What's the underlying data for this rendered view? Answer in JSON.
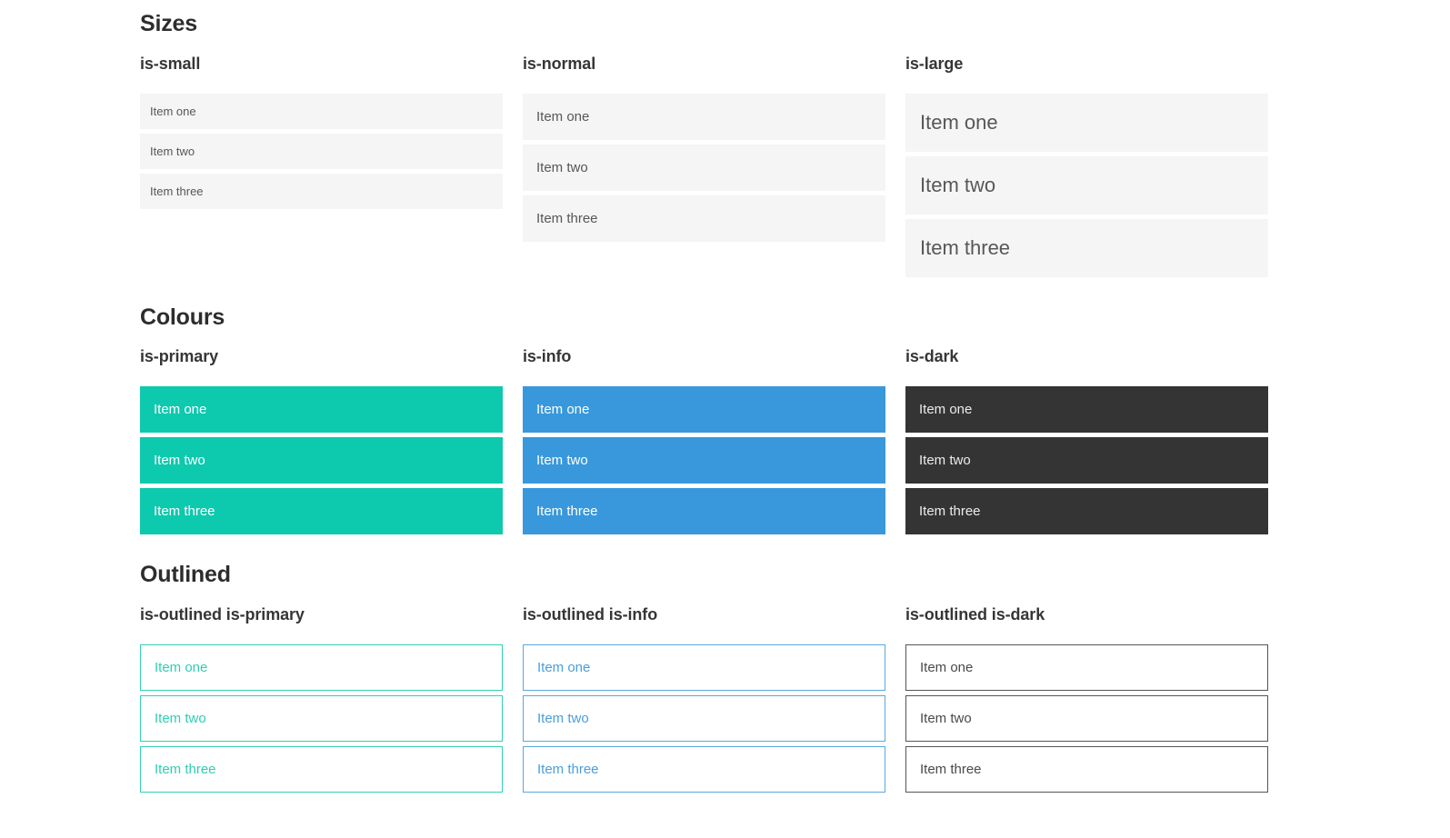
{
  "colors": {
    "page_background": "#ffffff",
    "heading_text": "#2d2d2d",
    "group_label_text": "#363636",
    "plain_item_bg": "#f5f5f5",
    "plain_item_text": "#575757",
    "primary": "#0dc9ae",
    "info": "#3898db",
    "dark": "#343434",
    "colored_item_text": "#ffffff",
    "dark_item_text": "#ececec",
    "outlined_dark_border": "#545454"
  },
  "sections": [
    {
      "title": "Sizes",
      "groups": [
        {
          "label": "is-small",
          "size": "small",
          "variant": "plain",
          "items": [
            "Item one",
            "Item two",
            "Item three"
          ]
        },
        {
          "label": "is-normal",
          "size": "normal",
          "variant": "plain",
          "items": [
            "Item one",
            "Item two",
            "Item three"
          ]
        },
        {
          "label": "is-large",
          "size": "large",
          "variant": "plain",
          "items": [
            "Item one",
            "Item two",
            "Item three"
          ]
        }
      ]
    },
    {
      "title": "Colours",
      "groups": [
        {
          "label": "is-primary",
          "size": "normal",
          "variant": "primary",
          "items": [
            "Item one",
            "Item two",
            "Item three"
          ]
        },
        {
          "label": "is-info",
          "size": "normal",
          "variant": "info",
          "items": [
            "Item one",
            "Item two",
            "Item three"
          ]
        },
        {
          "label": "is-dark",
          "size": "normal",
          "variant": "dark",
          "items": [
            "Item one",
            "Item two",
            "Item three"
          ]
        }
      ]
    },
    {
      "title": "Outlined",
      "groups": [
        {
          "label": "is-outlined is-primary",
          "size": "normal",
          "variant": "outlined-primary",
          "items": [
            "Item one",
            "Item two",
            "Item three"
          ]
        },
        {
          "label": "is-outlined is-info",
          "size": "normal",
          "variant": "outlined-info",
          "items": [
            "Item one",
            "Item two",
            "Item three"
          ]
        },
        {
          "label": "is-outlined is-dark",
          "size": "normal",
          "variant": "outlined-dark",
          "items": [
            "Item one",
            "Item two",
            "Item three"
          ]
        }
      ]
    }
  ]
}
